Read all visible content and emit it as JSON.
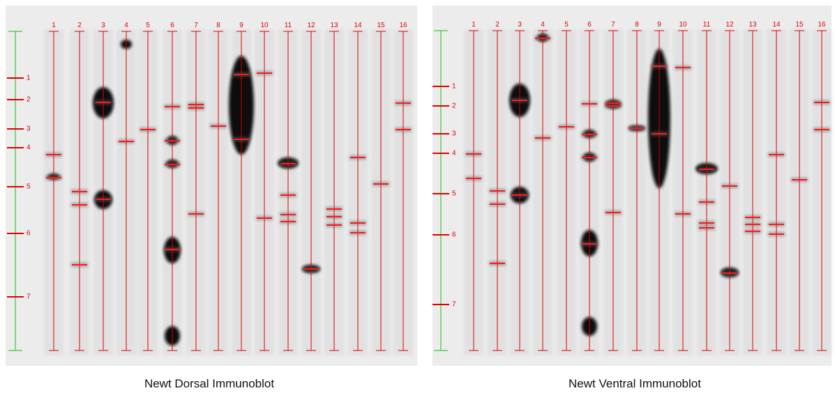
{
  "panels": [
    {
      "caption": "Newt Dorsal Immunoblot",
      "lanes": [
        "1",
        "2",
        "3",
        "4",
        "5",
        "6",
        "7",
        "8",
        "9",
        "10",
        "11",
        "12",
        "13",
        "14",
        "15",
        "16"
      ],
      "markers": [
        "1",
        "2",
        "3",
        "4",
        "5",
        "6",
        "7"
      ]
    },
    {
      "caption": "Newt Ventral Immunoblot",
      "lanes": [
        "1",
        "2",
        "3",
        "4",
        "5",
        "6",
        "7",
        "8",
        "9",
        "10",
        "11",
        "12",
        "13",
        "14",
        "15",
        "16"
      ],
      "markers": [
        "1",
        "2",
        "3",
        "4",
        "5",
        "6",
        "7"
      ]
    }
  ]
}
